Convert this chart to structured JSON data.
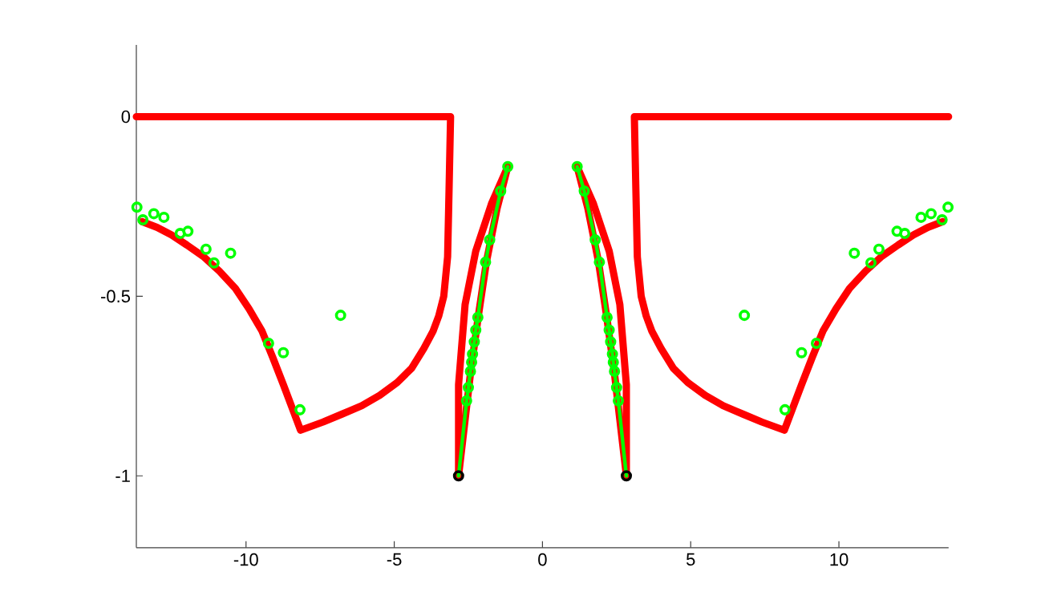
{
  "chart_data": {
    "type": "line",
    "xlim": [
      -13.7,
      13.7
    ],
    "ylim": [
      -1.2,
      0.2
    ],
    "xticks": [
      -10,
      -5,
      0,
      5,
      10
    ],
    "yticks": [
      -1,
      -0.5,
      0
    ],
    "series": [
      {
        "color": "#ff0000",
        "x": [
          -13.7,
          -3.1,
          -3.15,
          -3.2,
          -3.33,
          -3.5,
          -3.69,
          -4.0,
          -4.41,
          -4.9,
          -5.49,
          -6.1,
          -6.76,
          -7.4,
          -8.16,
          -8.74,
          -9.1,
          -9.46,
          -9.9,
          -10.36,
          -10.9,
          -11.44,
          -12.0,
          -12.52,
          -13.0,
          -13.51
        ],
        "values": [
          0,
          0,
          -0.2,
          -0.39,
          -0.5,
          -0.555,
          -0.597,
          -0.645,
          -0.7,
          -0.74,
          -0.776,
          -0.805,
          -0.828,
          -0.85,
          -0.873,
          -0.746,
          -0.67,
          -0.597,
          -0.535,
          -0.478,
          -0.43,
          -0.389,
          -0.357,
          -0.329,
          -0.308,
          -0.292
        ]
      },
      {
        "color": "#ff0000",
        "x": [
          13.7,
          3.1,
          3.15,
          3.2,
          3.33,
          3.5,
          3.69,
          4.0,
          4.41,
          4.9,
          5.49,
          6.1,
          6.76,
          7.4,
          8.16,
          8.74,
          9.1,
          9.46,
          9.9,
          10.36,
          10.9,
          11.44,
          12.0,
          12.52,
          13.0,
          13.51
        ],
        "values": [
          0,
          0,
          -0.2,
          -0.39,
          -0.5,
          -0.555,
          -0.597,
          -0.645,
          -0.7,
          -0.74,
          -0.776,
          -0.805,
          -0.828,
          -0.85,
          -0.873,
          -0.746,
          -0.67,
          -0.597,
          -0.535,
          -0.478,
          -0.43,
          -0.389,
          -0.357,
          -0.329,
          -0.308,
          -0.292
        ]
      },
      {
        "color": "#ff0000",
        "x": [
          -1.17,
          -1.71,
          -2.25,
          -2.61,
          -2.83,
          -2.83
        ],
        "values": [
          -0.139,
          -0.24,
          -0.374,
          -0.523,
          -0.746,
          -1.0
        ]
      },
      {
        "color": "#ff0000",
        "x": [
          -2.83,
          -2.43,
          -2.16,
          -1.89,
          -1.53,
          -1.17
        ],
        "values": [
          -1.0,
          -0.716,
          -0.553,
          -0.404,
          -0.255,
          -0.139
        ]
      },
      {
        "color": "#ff0000",
        "x": [
          1.17,
          1.71,
          2.25,
          2.61,
          2.83,
          2.83
        ],
        "values": [
          -0.139,
          -0.24,
          -0.374,
          -0.523,
          -0.746,
          -1.0
        ]
      },
      {
        "color": "#ff0000",
        "x": [
          2.83,
          2.43,
          2.16,
          1.89,
          1.53,
          1.17
        ],
        "values": [
          -1.0,
          -0.716,
          -0.553,
          -0.404,
          -0.255,
          -0.139
        ]
      },
      {
        "color": "#00ff00",
        "x": [
          -1.17,
          -1.41,
          -1.78,
          -1.92,
          -2.18,
          -2.25,
          -2.3,
          -2.36,
          -2.39,
          -2.43,
          -2.5,
          -2.56,
          -2.83
        ],
        "values": [
          -0.139,
          -0.207,
          -0.343,
          -0.405,
          -0.559,
          -0.594,
          -0.627,
          -0.661,
          -0.684,
          -0.709,
          -0.754,
          -0.791,
          -1.0
        ]
      },
      {
        "color": "#00ff00",
        "x": [
          1.17,
          1.41,
          1.78,
          1.92,
          2.18,
          2.25,
          2.3,
          2.36,
          2.39,
          2.43,
          2.5,
          2.56,
          2.83
        ],
        "values": [
          -0.139,
          -0.207,
          -0.343,
          -0.405,
          -0.559,
          -0.594,
          -0.627,
          -0.661,
          -0.684,
          -0.709,
          -0.754,
          -0.791,
          -1.0
        ]
      },
      {
        "type": "scatter",
        "marker": "circle",
        "color": "#00ff00",
        "x": [
          -13.68,
          -13.48,
          -13.11,
          -12.77,
          -12.22,
          -11.96,
          -11.35,
          -11.08,
          -10.52,
          -9.24,
          -8.74,
          -8.18,
          -6.81,
          -1.17,
          -1.41,
          -1.78,
          -1.92,
          -2.18,
          -2.25,
          -2.3,
          -2.36,
          -2.39,
          -2.43,
          -2.5,
          -2.56,
          13.68,
          13.48,
          13.11,
          12.77,
          12.22,
          11.96,
          11.35,
          11.08,
          10.52,
          9.24,
          8.74,
          8.18,
          6.81,
          1.17,
          1.41,
          1.78,
          1.92,
          2.18,
          2.25,
          2.3,
          2.36,
          2.39,
          2.43,
          2.5,
          2.56
        ],
        "values": [
          -0.252,
          -0.287,
          -0.27,
          -0.28,
          -0.325,
          -0.319,
          -0.369,
          -0.407,
          -0.38,
          -0.631,
          -0.657,
          -0.816,
          -0.553,
          -0.139,
          -0.207,
          -0.343,
          -0.405,
          -0.559,
          -0.594,
          -0.627,
          -0.661,
          -0.684,
          -0.709,
          -0.754,
          -0.791,
          -0.252,
          -0.287,
          -0.27,
          -0.28,
          -0.325,
          -0.319,
          -0.369,
          -0.407,
          -0.38,
          -0.631,
          -0.657,
          -0.816,
          -0.553,
          -0.139,
          -0.207,
          -0.343,
          -0.405,
          -0.559,
          -0.594,
          -0.627,
          -0.661,
          -0.684,
          -0.709,
          -0.754,
          -0.791
        ]
      },
      {
        "type": "scatter",
        "marker": "circle",
        "color": "#000000",
        "x": [
          -2.83,
          2.83
        ],
        "values": [
          -1.0,
          -1.0
        ]
      }
    ]
  }
}
